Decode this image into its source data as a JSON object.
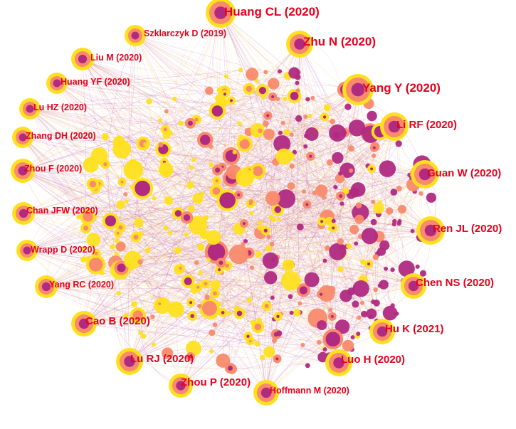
{
  "colors": {
    "yellow": "#ffe01f",
    "orange": "#f98a6b",
    "purple": "#b02a82",
    "label": "#e8001c",
    "edge_purple": "#b94a9c",
    "edge_yellow": "#f6c94a"
  },
  "labels": [
    {
      "text": "Huang CL (2020)"
    },
    {
      "text": "Zhu N (2020)"
    },
    {
      "text": "Szklarczyk D (2019)"
    },
    {
      "text": "Yang Y (2020)"
    },
    {
      "text": "Liu M (2020)"
    },
    {
      "text": "Huang YF (2020)"
    },
    {
      "text": "Li RF (2020)"
    },
    {
      "text": "Lu HZ (2020)"
    },
    {
      "text": "Zhang DH (2020)"
    },
    {
      "text": "Guan W (2020)"
    },
    {
      "text": "Zhou F (2020)"
    },
    {
      "text": "Chan JFW (2020)"
    },
    {
      "text": "Ren JL (2020)"
    },
    {
      "text": "Wrapp D (2020)"
    },
    {
      "text": "Chen NS (2020)"
    },
    {
      "text": "Yang RC (2020)"
    },
    {
      "text": "Cao B (2020)"
    },
    {
      "text": "Hu K (2021)"
    },
    {
      "text": "Lu RJ (2020)"
    },
    {
      "text": "Luo H (2020)"
    },
    {
      "text": "Zhou P (2020)"
    },
    {
      "text": "Hoffmann M (2020)"
    }
  ]
}
